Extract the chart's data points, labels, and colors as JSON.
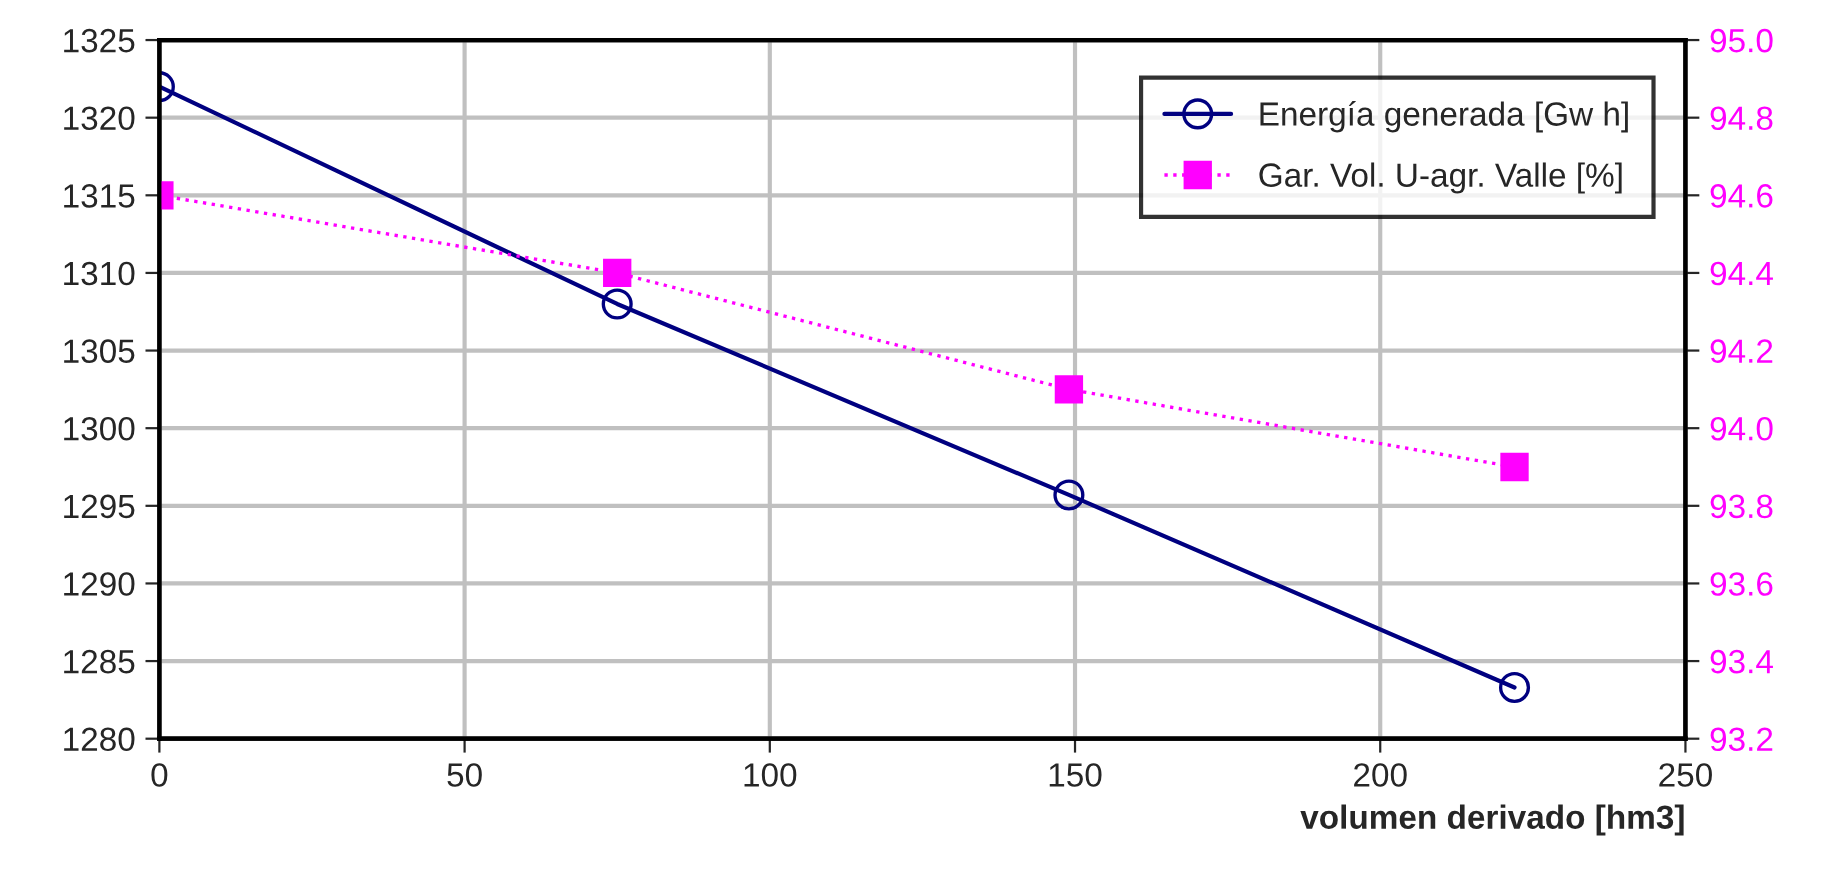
{
  "chart_data": {
    "type": "line",
    "xlabel": "volumen derivado [hm3]",
    "xlim": [
      0,
      250
    ],
    "xticks": [
      0,
      50,
      100,
      150,
      200,
      250
    ],
    "ylim": [
      1280,
      1325
    ],
    "yticks": [
      1280,
      1285,
      1290,
      1295,
      1300,
      1305,
      1310,
      1315,
      1320,
      1325
    ],
    "y2lim": [
      93.2,
      95.0
    ],
    "y2ticks": [
      {
        "value": 93.2,
        "label": "93.2"
      },
      {
        "value": 93.4,
        "label": "93.4"
      },
      {
        "value": 93.6,
        "label": "93.6"
      },
      {
        "value": 93.8,
        "label": "93.8"
      },
      {
        "value": 94.0,
        "label": "94.0"
      },
      {
        "value": 94.2,
        "label": "94.2"
      },
      {
        "value": 94.4,
        "label": "94.4"
      },
      {
        "value": 94.6,
        "label": "94.6"
      },
      {
        "value": 94.8,
        "label": "94.8"
      },
      {
        "value": 95.0,
        "label": "95.0"
      }
    ],
    "x": [
      0,
      75,
      149,
      222
    ],
    "series": [
      {
        "name": "Energía generada [Gw h]",
        "color": "#000080",
        "values": [
          1322,
          1308,
          1295.7,
          1283.3
        ],
        "marker": "circle",
        "line_style": "solid"
      },
      {
        "name": "Gar. Vol. U-agr. Valle [%]",
        "color": "#ff00ff",
        "values": [
          94.6,
          94.4,
          94.1,
          93.9
        ],
        "axis": "y2",
        "marker": "square",
        "line_style": "dotted"
      }
    ],
    "grid": true,
    "legend": "top right"
  }
}
